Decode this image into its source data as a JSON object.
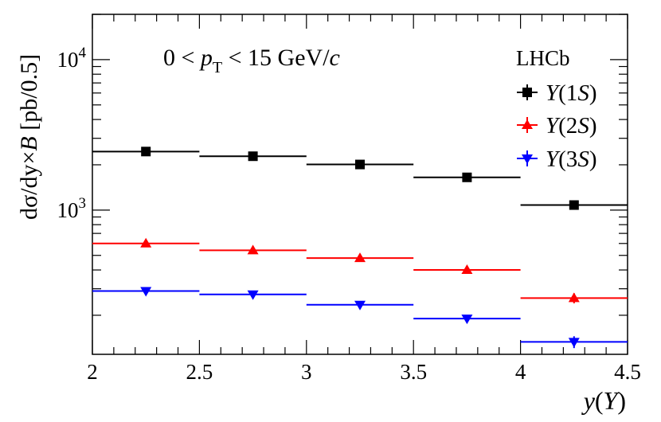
{
  "chart_data": {
    "type": "scatter",
    "title": "",
    "experiment_label": "LHCb",
    "kinematic_range": {
      "prefix": "0 < ",
      "var": "p",
      "sub": "T",
      "suffix_pre": " < 15 GeV/",
      "suffix_it": "c"
    },
    "xlabel": {
      "var": "y",
      "open": "(",
      "sym": "Υ",
      "close": ")"
    },
    "ylabel": {
      "d": "d",
      "sigma": "σ",
      "mid": "/dy×",
      "B": "B",
      "unit": " [pb/0.5]"
    },
    "xlim": [
      2,
      4.5
    ],
    "ylim": [
      110,
      20000
    ],
    "yscale": "log",
    "x_ticks": [
      "2",
      "2.5",
      "3",
      "3.5",
      "4",
      "4.5"
    ],
    "y_ticks": [
      {
        "base": "10",
        "exp": "3"
      },
      {
        "base": "10",
        "exp": "4"
      }
    ],
    "bins": [
      [
        2,
        2.5
      ],
      [
        2.5,
        3
      ],
      [
        3,
        3.5
      ],
      [
        3.5,
        4
      ],
      [
        4,
        4.5
      ]
    ],
    "series": [
      {
        "name": "Υ(1S)",
        "state": "1",
        "color": "#000000",
        "marker": "square",
        "x": [
          2.25,
          2.75,
          3.25,
          3.75,
          4.25
        ],
        "values": [
          2450,
          2280,
          2010,
          1650,
          1080
        ],
        "errors": [
          60,
          55,
          50,
          45,
          60
        ]
      },
      {
        "name": "Υ(2S)",
        "state": "2",
        "color": "#ff0000",
        "marker": "triangle-up",
        "x": [
          2.25,
          2.75,
          3.25,
          3.75,
          4.25
        ],
        "values": [
          600,
          540,
          480,
          400,
          260
        ],
        "errors": [
          20,
          18,
          16,
          15,
          20
        ]
      },
      {
        "name": "Υ(3S)",
        "state": "3",
        "color": "#0000ff",
        "marker": "triangle-down",
        "x": [
          2.25,
          2.75,
          3.25,
          3.75,
          4.25
        ],
        "values": [
          290,
          275,
          235,
          190,
          133
        ],
        "errors": [
          12,
          11,
          10,
          10,
          12
        ]
      }
    ],
    "legend": {
      "placement": "top-right",
      "paren_open": "(",
      "letter": "S",
      "paren_close": ")"
    }
  }
}
